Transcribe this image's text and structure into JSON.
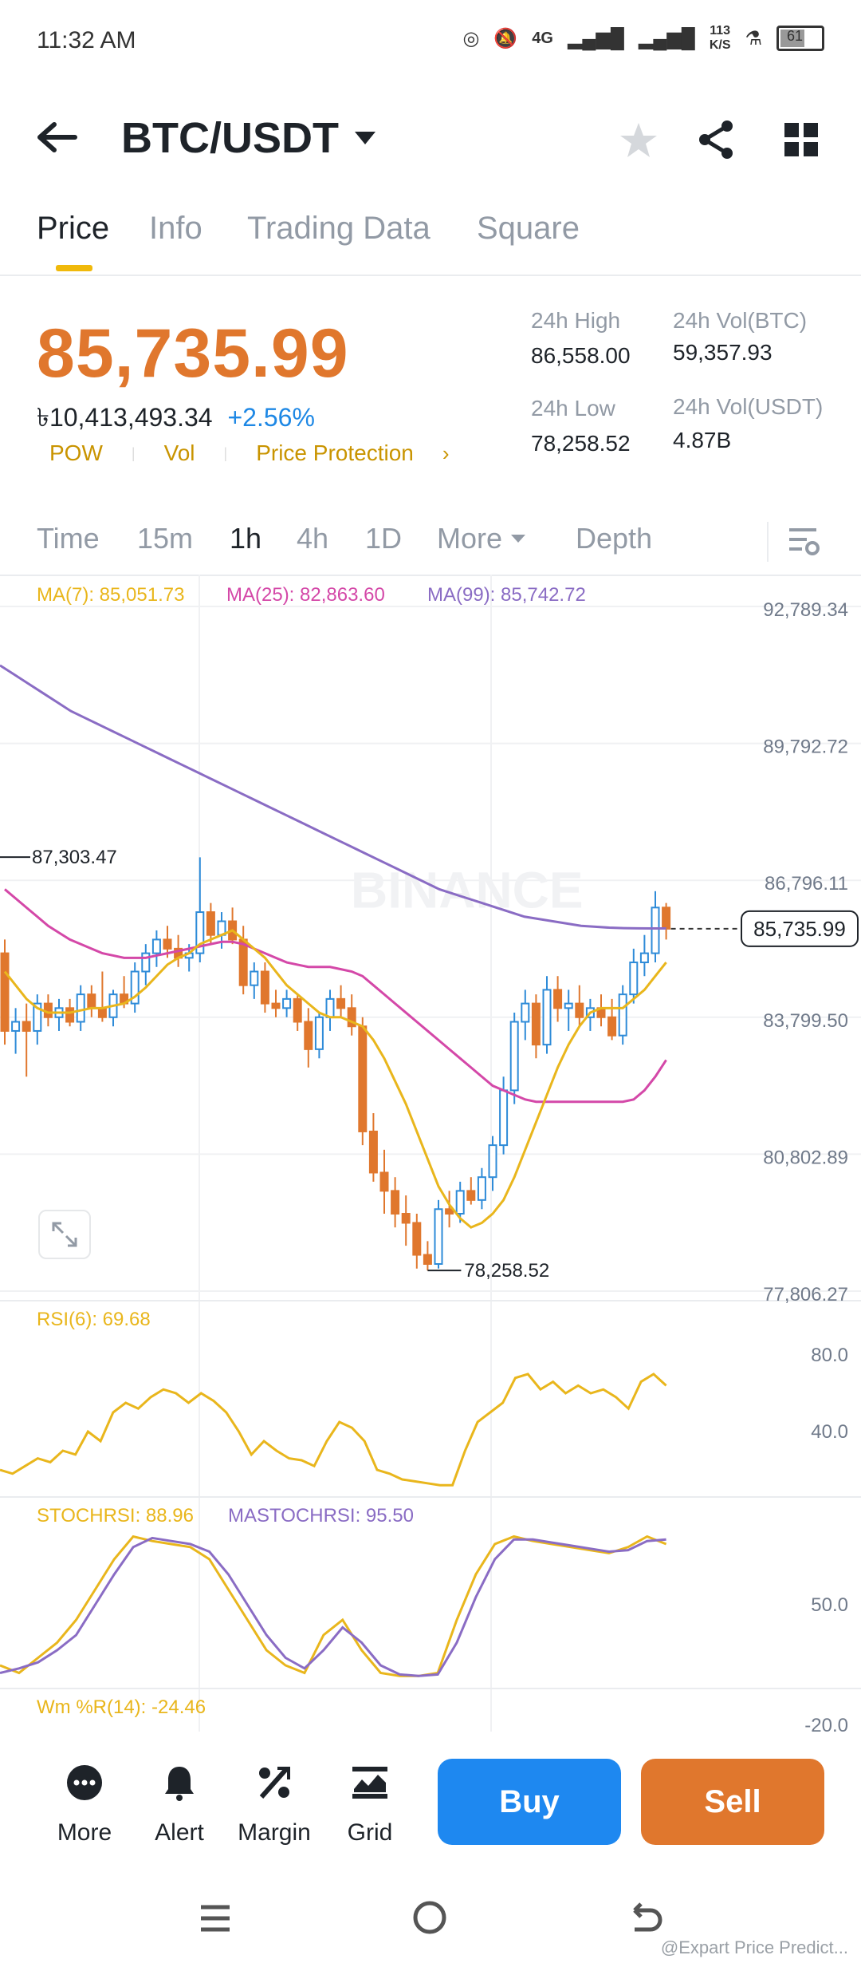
{
  "status_bar": {
    "time": "11:32 AM",
    "network": "4G",
    "speed_top": "113",
    "speed_bottom": "K/S",
    "battery": "61"
  },
  "header": {
    "pair": "BTC/USDT"
  },
  "tabs": [
    "Price",
    "Info",
    "Trading Data",
    "Square"
  ],
  "price": {
    "last": "85,735.99",
    "fiat": "৳10,413,493.34",
    "change": "+2.56%",
    "tags": [
      "POW",
      "Vol",
      "Price Protection"
    ],
    "high_label": "24h High",
    "high": "86,558.00",
    "low_label": "24h Low",
    "low": "78,258.52",
    "vol_btc_label": "24h Vol(BTC)",
    "vol_btc": "59,357.93",
    "vol_usdt_label": "24h Vol(USDT)",
    "vol_usdt": "4.87B"
  },
  "intervals": [
    "Time",
    "15m",
    "1h",
    "4h",
    "1D",
    "More",
    "Depth"
  ],
  "indicators": {
    "ma7": "MA(7): 85,051.73",
    "ma25": "MA(25): 82,863.60",
    "ma99": "MA(99): 85,742.72",
    "rsi": "RSI(6): 69.68",
    "stochrsi": "STOCHRSI: 88.96",
    "mastochrsi": "MASTOCHRSI: 95.50",
    "wmr": "Wm %R(14): -24.46"
  },
  "colors": {
    "up": "#2e8bd8",
    "down": "#e0772d",
    "ma7": "#e9b61c",
    "ma25": "#d448a8",
    "ma99": "#8a6cc4",
    "buy": "#1e88f0",
    "sell": "#e0772d",
    "accent": "#f0b90b"
  },
  "chart_data": {
    "type": "candlestick",
    "y_ticks": [
      "92,789.34",
      "89,792.72",
      "86,796.11",
      "83,799.50",
      "80,802.89",
      "77,806.27"
    ],
    "ylim": [
      77806.27,
      92789.34
    ],
    "current_price_label": "85,735.99",
    "current_price": 85735.99,
    "high_marker": "87,303.47",
    "high_marker_value": 87303.47,
    "low_marker": "78,258.52",
    "low_marker_value": 78258.52,
    "candles": [
      {
        "o": 85200,
        "h": 85500,
        "l": 83200,
        "c": 83500
      },
      {
        "o": 83500,
        "h": 84000,
        "l": 83000,
        "c": 83700
      },
      {
        "o": 83700,
        "h": 84100,
        "l": 82500,
        "c": 83500
      },
      {
        "o": 83500,
        "h": 84300,
        "l": 83200,
        "c": 84100
      },
      {
        "o": 84100,
        "h": 84300,
        "l": 83600,
        "c": 83800
      },
      {
        "o": 83800,
        "h": 84200,
        "l": 83500,
        "c": 84000
      },
      {
        "o": 84000,
        "h": 84200,
        "l": 83600,
        "c": 83700
      },
      {
        "o": 83700,
        "h": 84500,
        "l": 83500,
        "c": 84300
      },
      {
        "o": 84300,
        "h": 84500,
        "l": 83800,
        "c": 84000
      },
      {
        "o": 84000,
        "h": 84800,
        "l": 83700,
        "c": 83800
      },
      {
        "o": 83800,
        "h": 84400,
        "l": 83600,
        "c": 84300
      },
      {
        "o": 84300,
        "h": 84700,
        "l": 84000,
        "c": 84100
      },
      {
        "o": 84100,
        "h": 85000,
        "l": 83900,
        "c": 84800
      },
      {
        "o": 84800,
        "h": 85400,
        "l": 84500,
        "c": 85200
      },
      {
        "o": 85200,
        "h": 85700,
        "l": 84900,
        "c": 85500
      },
      {
        "o": 85500,
        "h": 85800,
        "l": 85100,
        "c": 85300
      },
      {
        "o": 85300,
        "h": 85600,
        "l": 84900,
        "c": 85100
      },
      {
        "o": 85100,
        "h": 85400,
        "l": 84800,
        "c": 85200
      },
      {
        "o": 85200,
        "h": 87300,
        "l": 85000,
        "c": 86100
      },
      {
        "o": 86100,
        "h": 86300,
        "l": 85400,
        "c": 85600
      },
      {
        "o": 85600,
        "h": 86100,
        "l": 85300,
        "c": 85900
      },
      {
        "o": 85900,
        "h": 86200,
        "l": 85400,
        "c": 85500
      },
      {
        "o": 85500,
        "h": 85800,
        "l": 84300,
        "c": 84500
      },
      {
        "o": 84500,
        "h": 85000,
        "l": 84200,
        "c": 84800
      },
      {
        "o": 84800,
        "h": 85000,
        "l": 83900,
        "c": 84100
      },
      {
        "o": 84100,
        "h": 84400,
        "l": 83800,
        "c": 84000
      },
      {
        "o": 84000,
        "h": 84400,
        "l": 83800,
        "c": 84200
      },
      {
        "o": 84200,
        "h": 84300,
        "l": 83500,
        "c": 83700
      },
      {
        "o": 83700,
        "h": 84000,
        "l": 82700,
        "c": 83100
      },
      {
        "o": 83100,
        "h": 83900,
        "l": 82900,
        "c": 83800
      },
      {
        "o": 83800,
        "h": 84400,
        "l": 83500,
        "c": 84200
      },
      {
        "o": 84200,
        "h": 84500,
        "l": 83800,
        "c": 84000
      },
      {
        "o": 84000,
        "h": 84300,
        "l": 83400,
        "c": 83600
      },
      {
        "o": 83600,
        "h": 83800,
        "l": 81000,
        "c": 81300
      },
      {
        "o": 81300,
        "h": 81700,
        "l": 80200,
        "c": 80400
      },
      {
        "o": 80400,
        "h": 80900,
        "l": 79500,
        "c": 80000
      },
      {
        "o": 80000,
        "h": 80300,
        "l": 79200,
        "c": 79500
      },
      {
        "o": 79500,
        "h": 79900,
        "l": 78800,
        "c": 79300
      },
      {
        "o": 79300,
        "h": 79500,
        "l": 78300,
        "c": 78600
      },
      {
        "o": 78600,
        "h": 78900,
        "l": 78258.52,
        "c": 78400
      },
      {
        "o": 78400,
        "h": 79800,
        "l": 78300,
        "c": 79600
      },
      {
        "o": 79600,
        "h": 80000,
        "l": 79200,
        "c": 79500
      },
      {
        "o": 79500,
        "h": 80200,
        "l": 79300,
        "c": 80000
      },
      {
        "o": 80000,
        "h": 80300,
        "l": 79700,
        "c": 79800
      },
      {
        "o": 79800,
        "h": 80500,
        "l": 79600,
        "c": 80300
      },
      {
        "o": 80300,
        "h": 81200,
        "l": 80000,
        "c": 81000
      },
      {
        "o": 81000,
        "h": 82500,
        "l": 80800,
        "c": 82200
      },
      {
        "o": 82200,
        "h": 83900,
        "l": 81900,
        "c": 83700
      },
      {
        "o": 83700,
        "h": 84400,
        "l": 83300,
        "c": 84100
      },
      {
        "o": 84100,
        "h": 84300,
        "l": 82900,
        "c": 83200
      },
      {
        "o": 83200,
        "h": 84700,
        "l": 83000,
        "c": 84400
      },
      {
        "o": 84400,
        "h": 84700,
        "l": 83700,
        "c": 84000
      },
      {
        "o": 84000,
        "h": 84400,
        "l": 83500,
        "c": 84100
      },
      {
        "o": 84100,
        "h": 84500,
        "l": 83600,
        "c": 83800
      },
      {
        "o": 83800,
        "h": 84200,
        "l": 83500,
        "c": 84000
      },
      {
        "o": 84000,
        "h": 84300,
        "l": 83600,
        "c": 83800
      },
      {
        "o": 83800,
        "h": 84200,
        "l": 83300,
        "c": 83400
      },
      {
        "o": 83400,
        "h": 84500,
        "l": 83200,
        "c": 84300
      },
      {
        "o": 84300,
        "h": 85300,
        "l": 84100,
        "c": 85000
      },
      {
        "o": 85000,
        "h": 85600,
        "l": 84700,
        "c": 85200
      },
      {
        "o": 85200,
        "h": 86558,
        "l": 85000,
        "c": 86200
      },
      {
        "o": 86200,
        "h": 86300,
        "l": 85500,
        "c": 85736
      }
    ],
    "ma7": [
      84800,
      84500,
      84200,
      84000,
      83900,
      83900,
      83900,
      83950,
      84000,
      84000,
      84050,
      84100,
      84250,
      84450,
      84700,
      84950,
      85100,
      85200,
      85400,
      85500,
      85600,
      85700,
      85500,
      85300,
      85100,
      84800,
      84500,
      84300,
      84100,
      83900,
      83800,
      83800,
      83700,
      83600,
      83300,
      82900,
      82400,
      81900,
      81300,
      80700,
      80100,
      79700,
      79400,
      79200,
      79300,
      79500,
      79800,
      80300,
      80900,
      81500,
      82100,
      82700,
      83200,
      83600,
      83900,
      84000,
      84000,
      84000,
      84200,
      84400,
      84700,
      85000
    ],
    "ma25": [
      86600,
      86400,
      86200,
      86000,
      85800,
      85650,
      85500,
      85400,
      85300,
      85200,
      85150,
      85100,
      85100,
      85100,
      85150,
      85200,
      85250,
      85300,
      85350,
      85400,
      85450,
      85450,
      85400,
      85300,
      85200,
      85100,
      85000,
      84950,
      84900,
      84900,
      84900,
      84850,
      84800,
      84700,
      84500,
      84300,
      84100,
      83900,
      83700,
      83500,
      83300,
      83100,
      82900,
      82700,
      82500,
      82300,
      82200,
      82100,
      82000,
      81950,
      81950,
      81950,
      81950,
      81950,
      81950,
      81950,
      81950,
      81950,
      82000,
      82200,
      82500,
      82863.6
    ],
    "ma99": [
      91500,
      91300,
      91100,
      90900,
      90700,
      90500,
      90350,
      90200,
      90050,
      89900,
      89750,
      89600,
      89450,
      89300,
      89150,
      89000,
      88850,
      88700,
      88550,
      88400,
      88250,
      88100,
      87950,
      87800,
      87650,
      87500,
      87350,
      87200,
      87050,
      86900,
      86750,
      86600,
      86500,
      86400,
      86300,
      86200,
      86100,
      86000,
      85950,
      85900,
      85850,
      85800,
      85780,
      85760,
      85750,
      85745,
      85743,
      85742.72
    ],
    "rsi": [
      20,
      18,
      22,
      26,
      24,
      30,
      28,
      40,
      35,
      50,
      55,
      52,
      58,
      62,
      60,
      55,
      60,
      56,
      50,
      40,
      28,
      35,
      30,
      26,
      25,
      22,
      35,
      45,
      42,
      35,
      20,
      18,
      15,
      14,
      13,
      12,
      12,
      30,
      45,
      50,
      55,
      68,
      70,
      62,
      66,
      60,
      64,
      60,
      62,
      58,
      52,
      66,
      70,
      64
    ],
    "rsi_ticks": [
      "80.0",
      "40.0"
    ],
    "stochrsi": [
      10,
      5,
      15,
      25,
      40,
      60,
      80,
      95,
      92,
      90,
      88,
      80,
      60,
      40,
      20,
      10,
      5,
      30,
      40,
      20,
      5,
      3,
      3,
      5,
      40,
      70,
      90,
      95,
      92,
      90,
      88,
      86,
      84,
      88,
      95,
      90
    ],
    "mastochrsi": [
      5,
      8,
      12,
      20,
      30,
      50,
      70,
      88,
      94,
      92,
      90,
      85,
      70,
      50,
      30,
      15,
      8,
      20,
      35,
      25,
      10,
      4,
      3,
      4,
      25,
      55,
      80,
      93,
      93,
      91,
      89,
      87,
      85,
      86,
      92,
      93
    ],
    "stoch_tick": "50.0",
    "wmr_tick": "-20.0"
  },
  "bottom_bar": {
    "more": "More",
    "alert": "Alert",
    "margin": "Margin",
    "grid": "Grid",
    "buy": "Buy",
    "sell": "Sell"
  },
  "watermark": "@Expart Price Predict...",
  "chart_watermark": "BINANCE"
}
